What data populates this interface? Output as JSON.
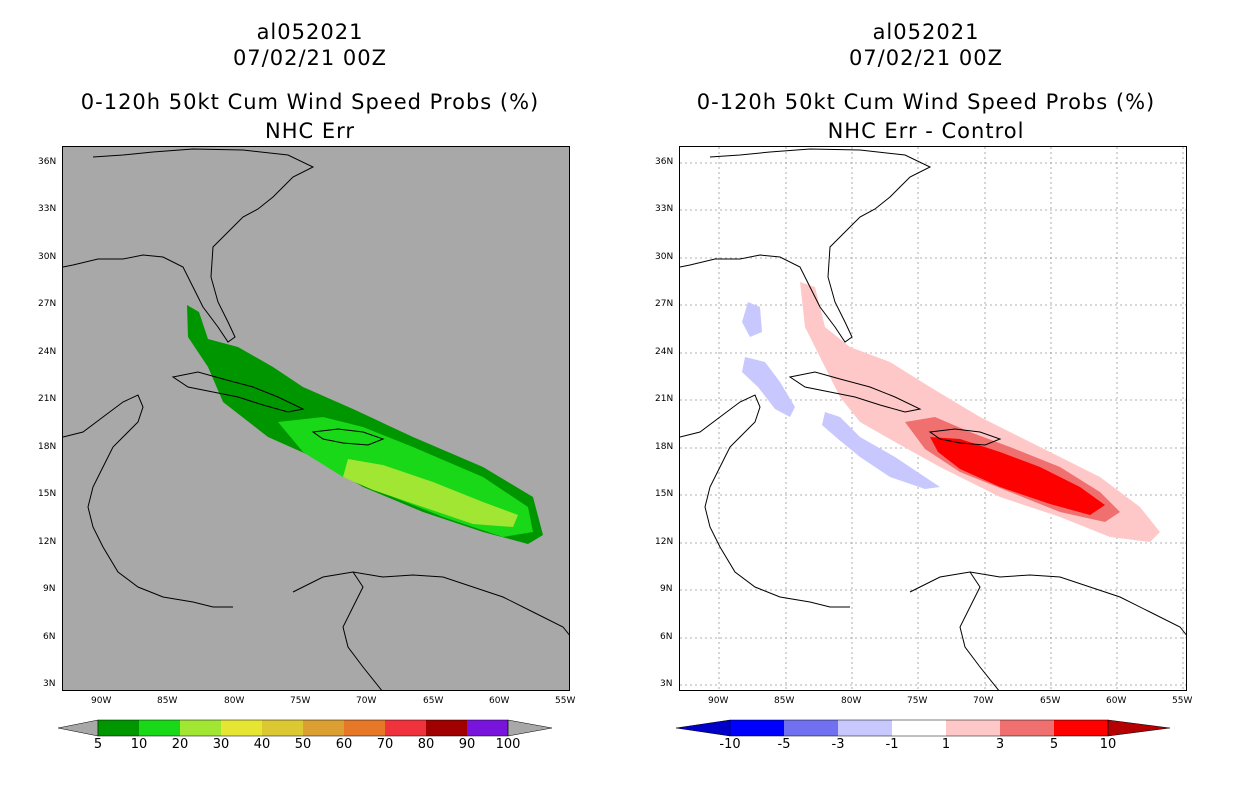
{
  "left_panel": {
    "title_line1": "al052021",
    "title_line2": "07/02/21 00Z",
    "title_line3": "0-120h 50kt Cum Wind Speed Probs (%)",
    "title_line4": "NHC Err",
    "background_color": "#a8a8a8",
    "colorbar_labels": [
      "5",
      "10",
      "20",
      "30",
      "40",
      "50",
      "60",
      "70",
      "80",
      "90",
      "100"
    ],
    "colorbar_colors": [
      "#009600",
      "#18d818",
      "#a0e632",
      "#e6e632",
      "#dcc832",
      "#dca032",
      "#e67828",
      "#f0323c",
      "#a00000",
      "#7814dc"
    ]
  },
  "right_panel": {
    "title_line1": "al052021",
    "title_line2": "07/02/21 00Z",
    "title_line3": "0-120h 50kt Cum Wind Speed Probs (%)",
    "title_line4": "NHC Err - Control",
    "background_color": "#ffffff",
    "colorbar_labels": [
      "-10",
      "-5",
      "-3",
      "-1",
      "1",
      "3",
      "5",
      "10"
    ],
    "colorbar_colors": [
      "#0000c8",
      "#0000ff",
      "#7070f0",
      "#c8c8ff",
      "#ffffff",
      "#ffc8c8",
      "#f07070",
      "#ff0000",
      "#b40000"
    ]
  },
  "lat_labels": [
    "36N",
    "33N",
    "30N",
    "27N",
    "24N",
    "21N",
    "18N",
    "15N",
    "12N",
    "9N",
    "6N",
    "3N"
  ],
  "lon_labels": [
    "90W",
    "85W",
    "80W",
    "75W",
    "70W",
    "65W",
    "60W",
    "55W"
  ]
}
